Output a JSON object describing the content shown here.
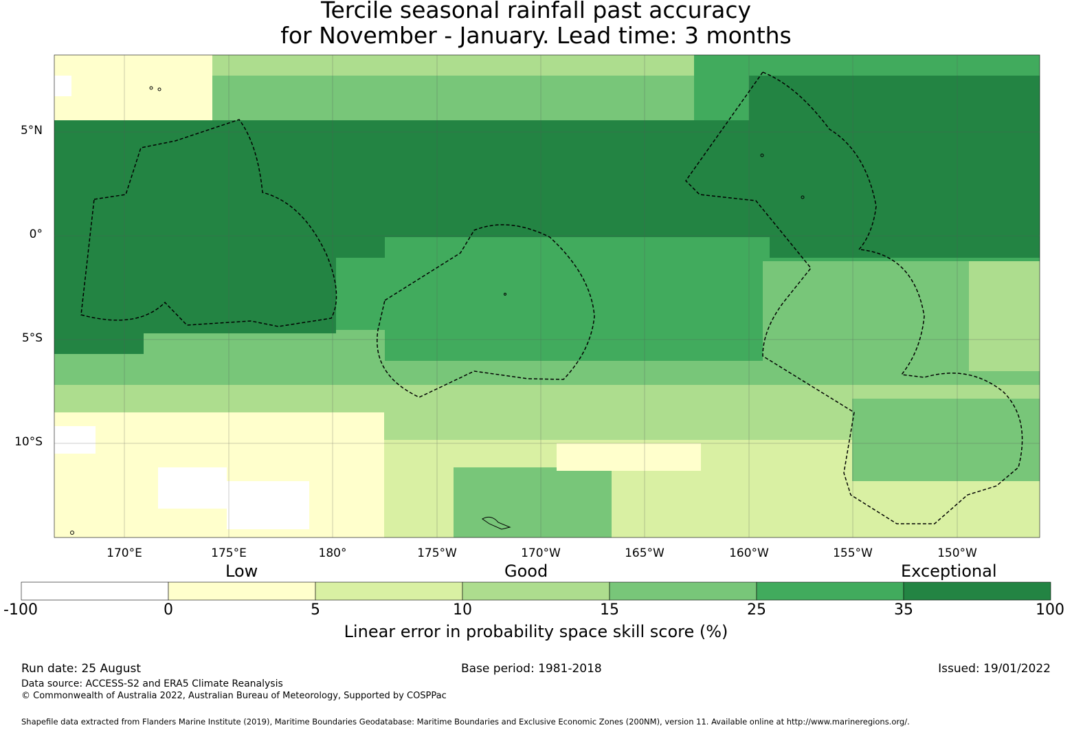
{
  "title": {
    "line1": "Tercile seasonal rainfall past accuracy",
    "line2": "for November - January. Lead time: 3 months"
  },
  "map": {
    "lat_labels": [
      "5°N",
      "0°",
      "5°S",
      "10°S"
    ],
    "lon_labels": [
      "170°E",
      "175°E",
      "180°",
      "175°W",
      "170°W",
      "165°W",
      "160°W",
      "155°W",
      "150°W"
    ],
    "colors": {
      "below_0": "#ffffff",
      "0_5": "#ffffcc",
      "5_10": "#d9f0a3",
      "10_15": "#addd8e",
      "15_25": "#78c679",
      "25_35": "#41ab5d",
      "35_100": "#238443"
    }
  },
  "legend": {
    "categories": [
      "Low",
      "Good",
      "Exceptional"
    ],
    "ticks": [
      "-100",
      "0",
      "5",
      "10",
      "15",
      "25",
      "35",
      "100"
    ],
    "label": "Linear error in probability space skill score (%)",
    "colors": [
      "#ffffff",
      "#ffffcc",
      "#d9f0a3",
      "#addd8e",
      "#78c679",
      "#41ab5d",
      "#238443"
    ]
  },
  "footer": {
    "run_date": "Run date: 25 August",
    "base_period": "Base period: 1981-2018",
    "issued": "Issued: 19/01/2022",
    "data_source": "Data source: ACCESS-S2 and ERA5 Climate Reanalysis",
    "copyright": "© Commonwealth of Australia 2022, Australian Bureau of Meteorology, Supported by COSPPac",
    "shapefile": "Shapefile data extracted from Flanders Marine Institute (2019), Maritime Boundaries Geodatabase: Maritime Boundaries and Exclusive Economic Zones (200NM), version 11. Available online at http://www.marineregions.org/."
  }
}
